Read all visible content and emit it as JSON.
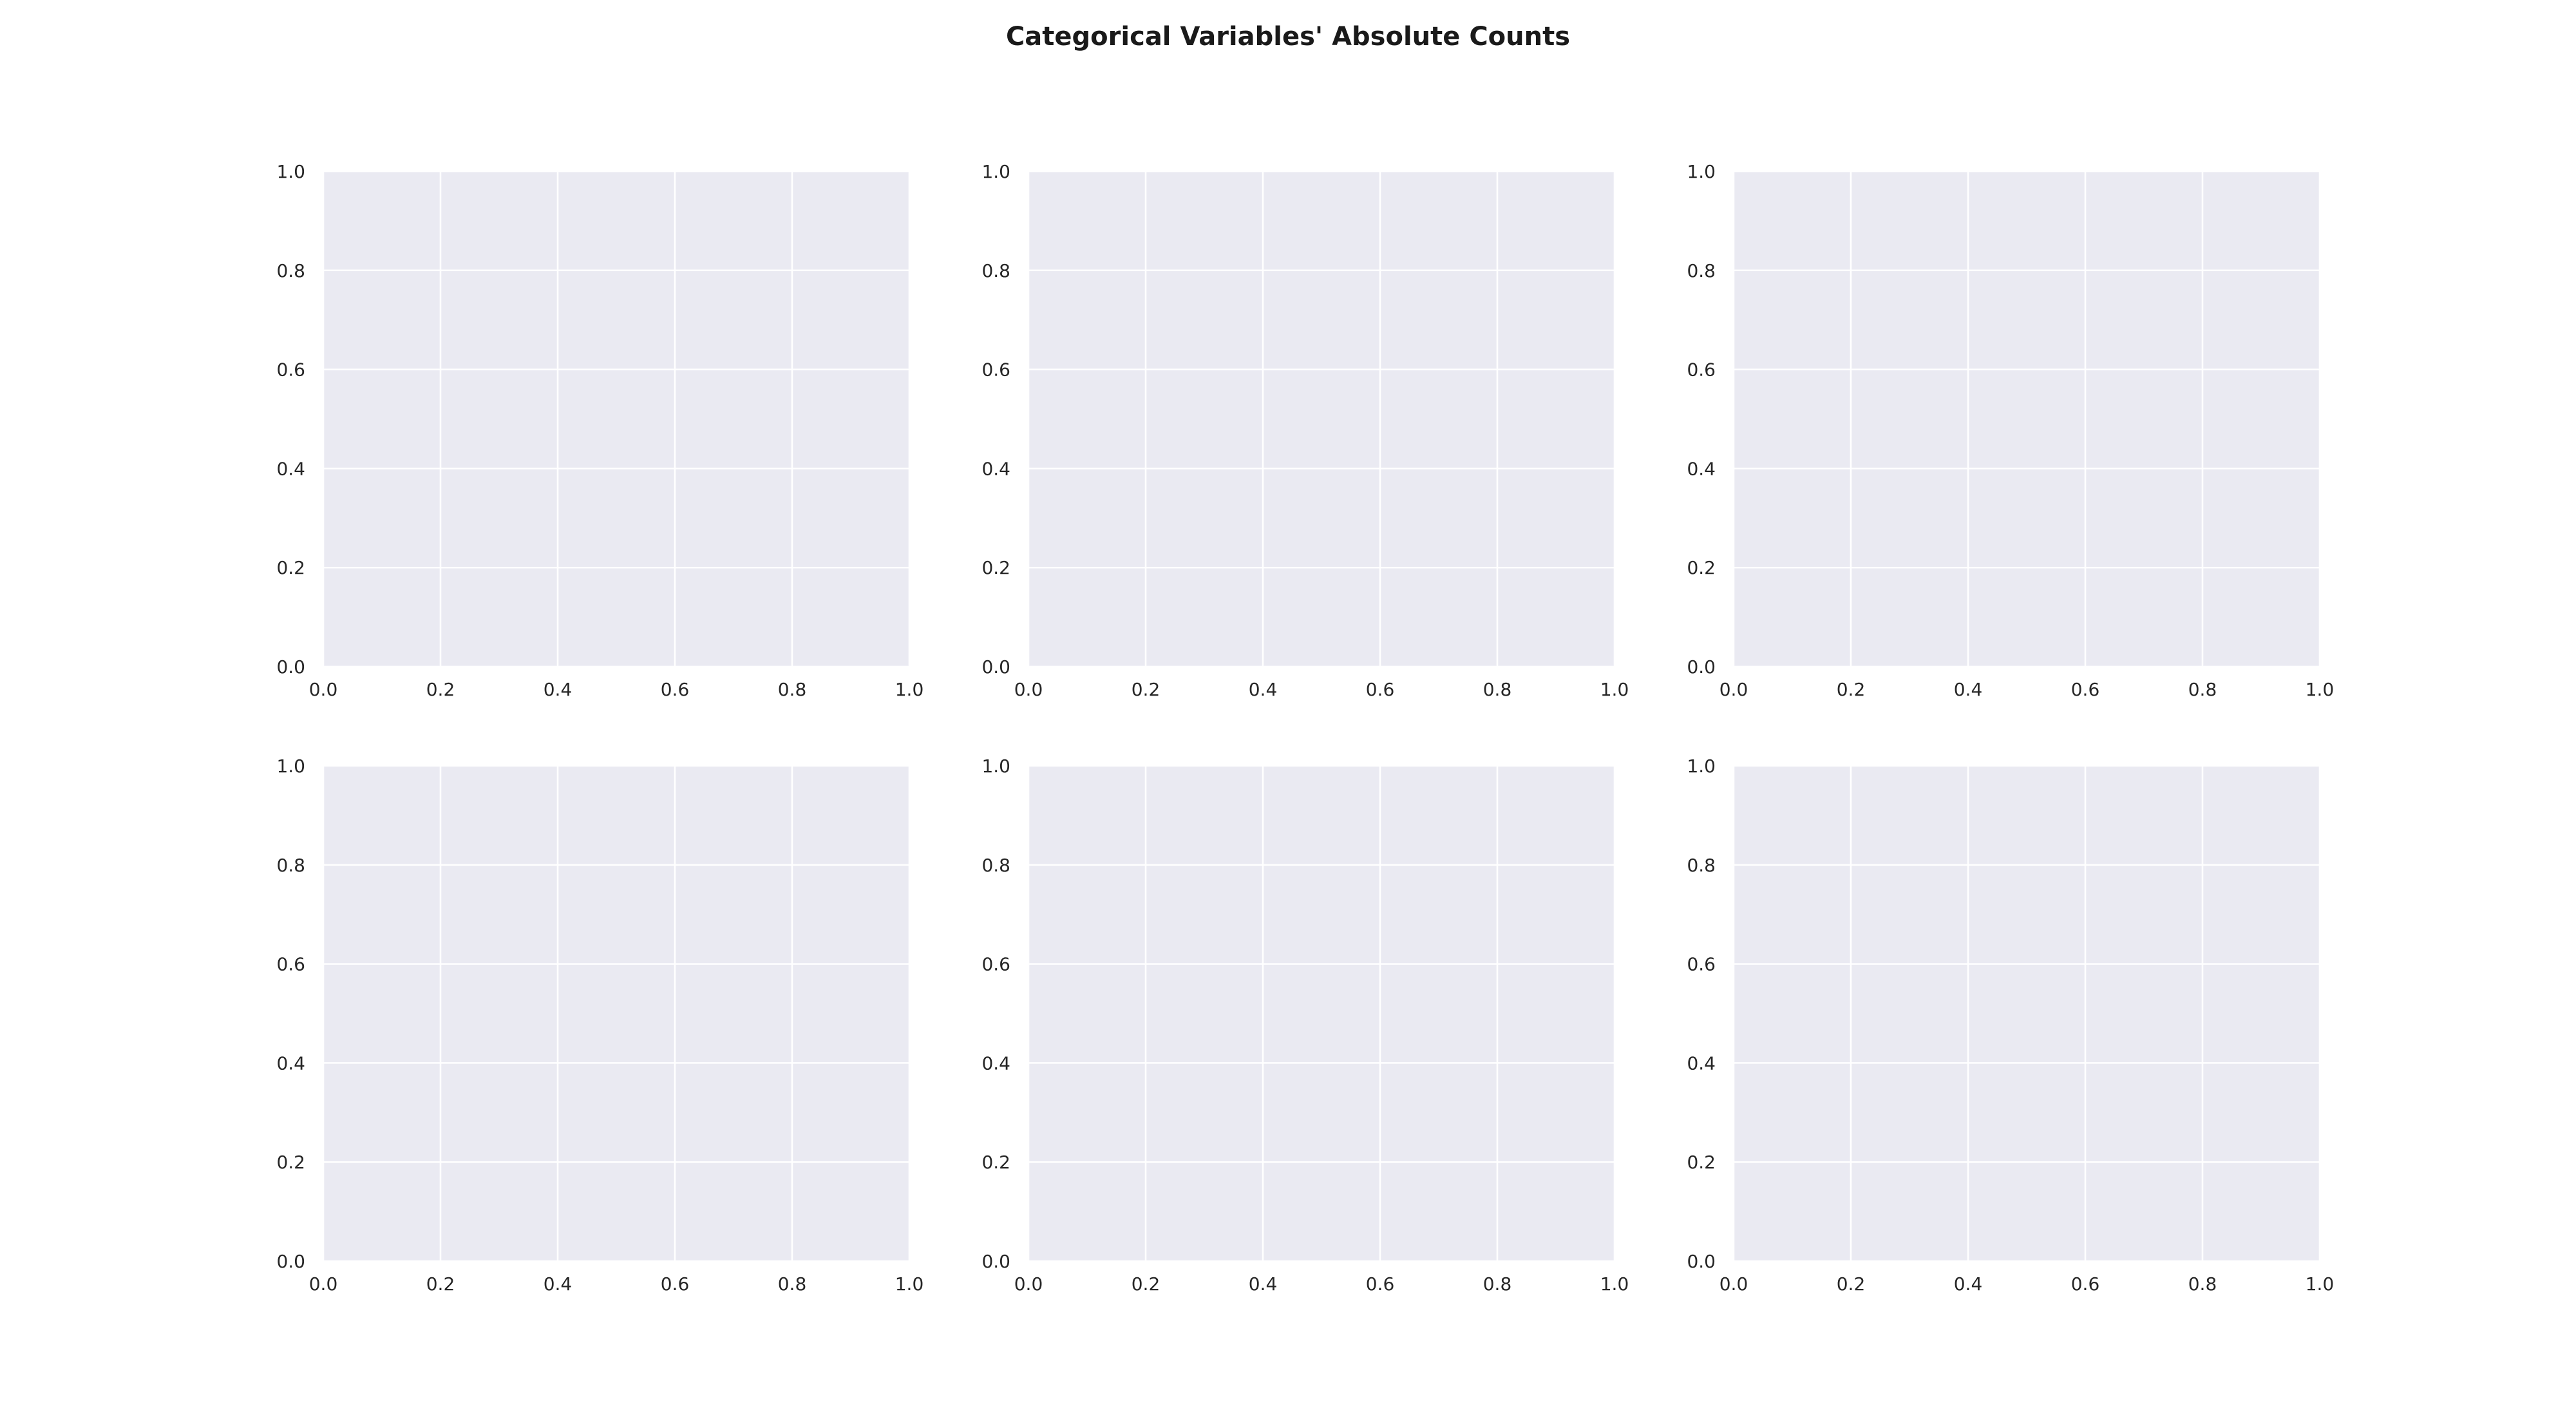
{
  "figure": {
    "title": "Categorical Variables' Absolute Counts",
    "background_color": "#ffffff",
    "axes_facecolor": "#eaeaf2",
    "grid_color": "#ffffff",
    "tick_label_color": "#262626"
  },
  "chart_data": [
    {
      "type": "bar",
      "title": "",
      "xlabel": "",
      "ylabel": "",
      "xlim": [
        0,
        1
      ],
      "ylim": [
        0,
        1
      ],
      "grid": true,
      "series": [],
      "xticks": [
        "0.0",
        "0.2",
        "0.4",
        "0.6",
        "0.8",
        "1.0"
      ],
      "yticks": [
        "0.0",
        "0.2",
        "0.4",
        "0.6",
        "0.8",
        "1.0"
      ]
    },
    {
      "type": "bar",
      "title": "",
      "xlabel": "",
      "ylabel": "",
      "xlim": [
        0,
        1
      ],
      "ylim": [
        0,
        1
      ],
      "grid": true,
      "series": [],
      "xticks": [
        "0.0",
        "0.2",
        "0.4",
        "0.6",
        "0.8",
        "1.0"
      ],
      "yticks": [
        "0.0",
        "0.2",
        "0.4",
        "0.6",
        "0.8",
        "1.0"
      ]
    },
    {
      "type": "bar",
      "title": "",
      "xlabel": "",
      "ylabel": "",
      "xlim": [
        0,
        1
      ],
      "ylim": [
        0,
        1
      ],
      "grid": true,
      "series": [],
      "xticks": [
        "0.0",
        "0.2",
        "0.4",
        "0.6",
        "0.8",
        "1.0"
      ],
      "yticks": [
        "0.0",
        "0.2",
        "0.4",
        "0.6",
        "0.8",
        "1.0"
      ]
    },
    {
      "type": "bar",
      "title": "",
      "xlabel": "",
      "ylabel": "",
      "xlim": [
        0,
        1
      ],
      "ylim": [
        0,
        1
      ],
      "grid": true,
      "series": [],
      "xticks": [
        "0.0",
        "0.2",
        "0.4",
        "0.6",
        "0.8",
        "1.0"
      ],
      "yticks": [
        "0.0",
        "0.2",
        "0.4",
        "0.6",
        "0.8",
        "1.0"
      ]
    },
    {
      "type": "bar",
      "title": "",
      "xlabel": "",
      "ylabel": "",
      "xlim": [
        0,
        1
      ],
      "ylim": [
        0,
        1
      ],
      "grid": true,
      "series": [],
      "xticks": [
        "0.0",
        "0.2",
        "0.4",
        "0.6",
        "0.8",
        "1.0"
      ],
      "yticks": [
        "0.0",
        "0.2",
        "0.4",
        "0.6",
        "0.8",
        "1.0"
      ]
    },
    {
      "type": "bar",
      "title": "",
      "xlabel": "",
      "ylabel": "",
      "xlim": [
        0,
        1
      ],
      "ylim": [
        0,
        1
      ],
      "grid": true,
      "series": [],
      "xticks": [
        "0.0",
        "0.2",
        "0.4",
        "0.6",
        "0.8",
        "1.0"
      ],
      "yticks": [
        "0.0",
        "0.2",
        "0.4",
        "0.6",
        "0.8",
        "1.0"
      ]
    }
  ]
}
